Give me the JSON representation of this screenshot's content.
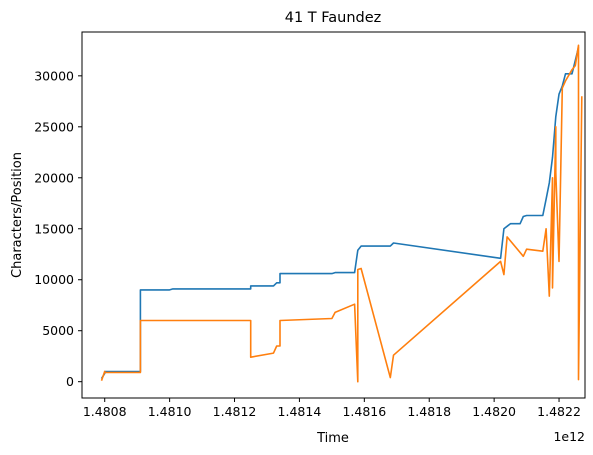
{
  "chart_data": {
    "type": "line",
    "title": "41 T Faundez",
    "xlabel": "Time",
    "ylabel": "Characters/Position",
    "x_offset_label": "1e12",
    "x_scale": 1000000000000.0,
    "xlim": [
      1.48073,
      1.48228
    ],
    "ylim": [
      -1600,
      34300
    ],
    "x_ticks": [
      1.4808,
      1.481,
      1.4812,
      1.4814,
      1.4816,
      1.4818,
      1.482,
      1.4822
    ],
    "x_tick_labels": [
      "1.4808",
      "1.4810",
      "1.4812",
      "1.4814",
      "1.4816",
      "1.4818",
      "1.4820",
      "1.4822"
    ],
    "y_ticks": [
      0,
      5000,
      10000,
      15000,
      20000,
      25000,
      30000
    ],
    "y_tick_labels": [
      "0",
      "5000",
      "10000",
      "15000",
      "20000",
      "25000",
      "30000"
    ],
    "grid": false,
    "legend": false,
    "series": [
      {
        "color": "#1f77b4",
        "x": [
          1.48079,
          1.4808,
          1.4808,
          1.4809,
          1.48091,
          1.48091,
          1.481,
          1.48101,
          1.48125,
          1.48125,
          1.48132,
          1.48133,
          1.48134,
          1.48134,
          1.4815,
          1.48151,
          1.48157,
          1.48158,
          1.48159,
          1.4816,
          1.48168,
          1.48169,
          1.48202,
          1.48203,
          1.48205,
          1.48206,
          1.48208,
          1.48209,
          1.4821,
          1.48215,
          1.48216,
          1.48217,
          1.48218,
          1.48219,
          1.4822,
          1.48221,
          1.48222,
          1.48224,
          1.48225,
          1.48226
        ],
        "y": [
          300,
          800,
          1000,
          1000,
          1000,
          9000,
          9000,
          9100,
          9100,
          9400,
          9400,
          9700,
          9700,
          10600,
          10600,
          10700,
          10700,
          12900,
          13300,
          13300,
          13300,
          13600,
          12100,
          15000,
          15500,
          15500,
          15500,
          16200,
          16300,
          16300,
          17900,
          19500,
          22000,
          26000,
          28200,
          29000,
          30200,
          30200,
          31500,
          32800
        ]
      },
      {
        "color": "#ff7f0e",
        "x": [
          1.48079,
          1.4808,
          1.4808,
          1.4809,
          1.48091,
          1.48091,
          1.481,
          1.48101,
          1.48125,
          1.48125,
          1.48132,
          1.48133,
          1.48134,
          1.48134,
          1.4815,
          1.48151,
          1.48157,
          1.48158,
          1.48158,
          1.48159,
          1.48168,
          1.48169,
          1.48202,
          1.48203,
          1.48204,
          1.48209,
          1.4821,
          1.48215,
          1.48216,
          1.48217,
          1.48218,
          1.48218,
          1.48219,
          1.48219,
          1.4822,
          1.48221,
          1.48222,
          1.48224,
          1.48225,
          1.48226,
          1.48226,
          1.48227
        ],
        "y": [
          100,
          1000,
          900,
          900,
          900,
          6000,
          6000,
          6000,
          6000,
          2400,
          2800,
          3500,
          3500,
          6000,
          6200,
          6800,
          7600,
          0,
          11000,
          11100,
          400,
          2600,
          11800,
          10500,
          14200,
          12300,
          13000,
          12800,
          15000,
          8400,
          20000,
          9200,
          25000,
          20500,
          11800,
          28800,
          29500,
          30600,
          31000,
          33000,
          200,
          28000
        ]
      }
    ]
  }
}
